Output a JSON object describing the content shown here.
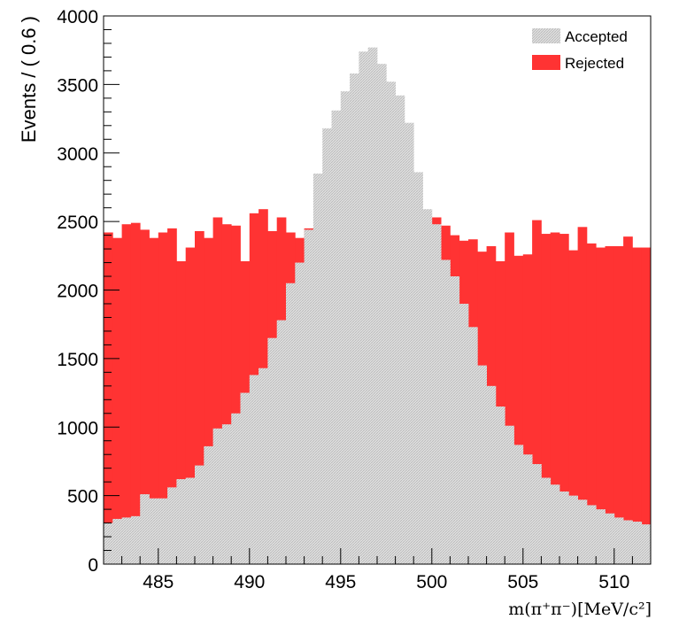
{
  "chart_data": {
    "type": "bar",
    "xlabel": "m(π⁺π⁻)[MeV/c²]",
    "ylabel": "Events / ( 0.6 )",
    "xlim": [
      482,
      512
    ],
    "ylim": [
      0,
      4000
    ],
    "x_ticks": [
      "485",
      "490",
      "495",
      "500",
      "505",
      "510"
    ],
    "x_tick_values": [
      485,
      490,
      495,
      500,
      505,
      510
    ],
    "y_ticks": [
      "0",
      "500",
      "1000",
      "1500",
      "2000",
      "2500",
      "3000",
      "3500",
      "4000"
    ],
    "y_tick_values": [
      0,
      500,
      1000,
      1500,
      2000,
      2500,
      3000,
      3500,
      4000
    ],
    "bin_width": 0.6,
    "series": [
      {
        "name": "Rejected",
        "color": "#ff3333",
        "values": [
          2420,
          2380,
          2480,
          2490,
          2440,
          2380,
          2420,
          2450,
          2210,
          2310,
          2430,
          2380,
          2530,
          2480,
          2470,
          2210,
          2560,
          2590,
          2430,
          2530,
          2420,
          2380,
          2450,
          2360,
          2420,
          2340,
          2450,
          2350,
          2600,
          2330,
          2360,
          2470,
          2390,
          2330,
          2340,
          2440,
          2530,
          2470,
          2400,
          2360,
          2370,
          2280,
          2320,
          2210,
          2420,
          2250,
          2260,
          2510,
          2410,
          2420,
          2410,
          2290,
          2460,
          2340,
          2310,
          2320,
          2320,
          2390,
          2310,
          2310
        ]
      },
      {
        "name": "Accepted",
        "color": "#cccccc",
        "values": [
          300,
          330,
          340,
          350,
          510,
          480,
          480,
          560,
          620,
          630,
          720,
          860,
          990,
          1020,
          1100,
          1250,
          1380,
          1430,
          1650,
          1780,
          2050,
          2200,
          2440,
          2850,
          3180,
          3310,
          3450,
          3580,
          3740,
          3770,
          3650,
          3520,
          3420,
          3220,
          2860,
          2590,
          2480,
          2220,
          2100,
          1900,
          1730,
          1450,
          1300,
          1150,
          1010,
          870,
          800,
          730,
          630,
          580,
          530,
          500,
          470,
          430,
          400,
          370,
          340,
          320,
          310,
          290
        ]
      }
    ],
    "legend": {
      "placement": "top-right",
      "entries": [
        "Accepted",
        "Rejected"
      ]
    }
  }
}
